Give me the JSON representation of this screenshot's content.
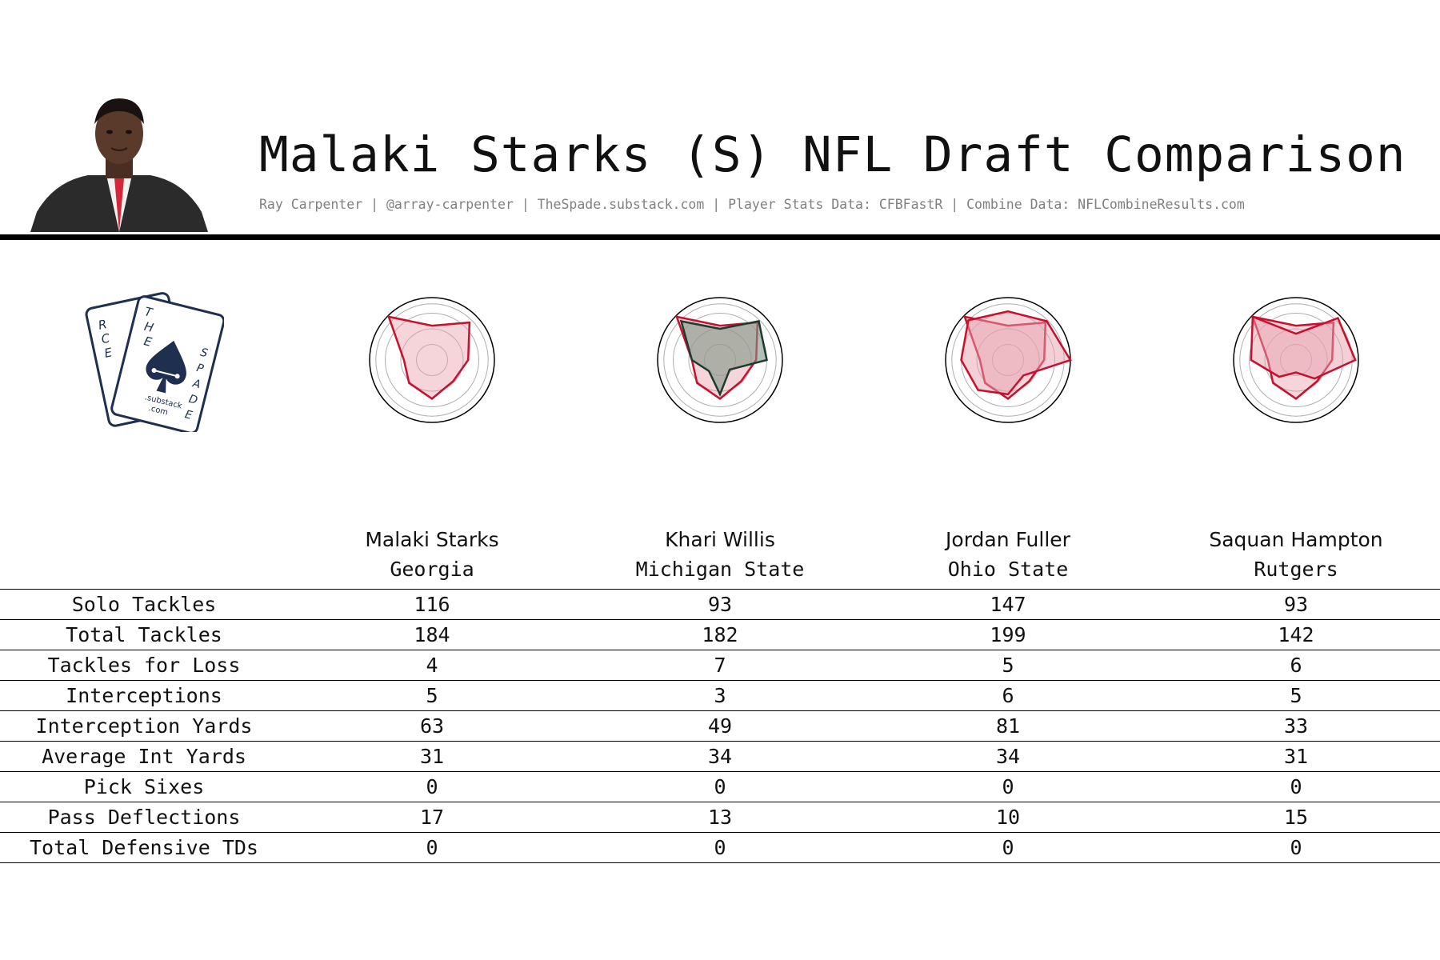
{
  "header": {
    "title": "Malaki Starks (S) NFL Draft Comparison",
    "credits": "Ray Carpenter | @array-carpenter | TheSpade.substack.com | Player Stats Data: CFBFastR | Combine Data: NFLCombineResults.com"
  },
  "logo": {
    "letters_left": [
      "R",
      "C",
      "E"
    ],
    "letters_top": [
      "T",
      "H",
      "E"
    ],
    "letters_right": [
      "S",
      "P",
      "A",
      "D",
      "E"
    ],
    "sub_line1": ".substack",
    "sub_line2": ".com",
    "icon": "spade-icon"
  },
  "players": [
    {
      "name": "Malaki Starks",
      "school": "Georgia"
    },
    {
      "name": "Khari Willis",
      "school": "Michigan State"
    },
    {
      "name": "Jordan Fuller",
      "school": "Ohio State"
    },
    {
      "name": "Saquan Hampton",
      "school": "Rutgers"
    }
  ],
  "colors": {
    "starks": "#c8102e",
    "starks_fill": "#e8a0ad",
    "comparison_khari": "#1f3b2d",
    "comparison_khari_fill": "#7f9887",
    "comparison_red": "#c8102e",
    "ring": "#000000",
    "grid": "#b0b0b0"
  },
  "chart_data": {
    "type": "table",
    "columns": [
      "Malaki Starks",
      "Khari Willis",
      "Jordan Fuller",
      "Saquan Hampton"
    ],
    "rows": [
      {
        "label": "Solo Tackles",
        "values": [
          "116",
          "93",
          "147",
          "93"
        ]
      },
      {
        "label": "Total Tackles",
        "values": [
          "184",
          "182",
          "199",
          "142"
        ]
      },
      {
        "label": "Tackles for Loss",
        "values": [
          "4",
          "7",
          "5",
          "6"
        ]
      },
      {
        "label": "Interceptions",
        "values": [
          "5",
          "3",
          "6",
          "5"
        ]
      },
      {
        "label": "Interception Yards",
        "values": [
          "63",
          "49",
          "81",
          "33"
        ]
      },
      {
        "label": "Average Int Yards",
        "values": [
          "31",
          "34",
          "34",
          "31"
        ]
      },
      {
        "label": "Pick Sixes",
        "values": [
          "0",
          "0",
          "0",
          "0"
        ]
      },
      {
        "label": "Pass Deflections",
        "values": [
          "17",
          "13",
          "10",
          "15"
        ]
      },
      {
        "label": "Total Defensive TDs",
        "values": [
          "0",
          "0",
          "0",
          "0"
        ]
      }
    ],
    "radar": {
      "type": "radar",
      "starks": [
        0.55,
        0.85,
        0.58,
        0.48,
        0.62,
        0.52,
        0.45,
        0.98
      ],
      "comparisons": [
        [
          0.5,
          0.88,
          0.75,
          0.22,
          0.55,
          0.25,
          0.45,
          0.88
        ],
        [
          0.78,
          0.88,
          1.0,
          0.35,
          0.55,
          0.68,
          0.75,
          0.9
        ],
        [
          0.42,
          0.95,
          0.95,
          0.42,
          0.2,
          0.38,
          0.72,
          0.98
        ]
      ]
    }
  }
}
